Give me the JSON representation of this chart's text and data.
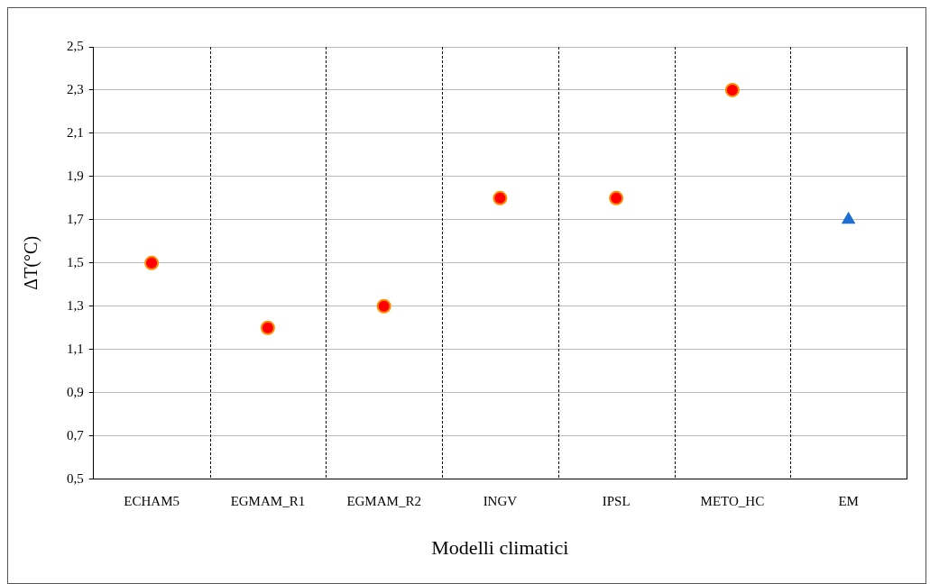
{
  "chart_data": {
    "type": "scatter",
    "xlabel": "Modelli climatici",
    "ylabel": "ΔT(°C)",
    "categories": [
      "ECHAM5",
      "EGMAM_R1",
      "EGMAM_R2",
      "INGV",
      "IPSL",
      "METO_HC",
      "EM"
    ],
    "series": [
      {
        "color": "#ff0000",
        "marker": "circle",
        "values": [
          1.5,
          1.2,
          1.3,
          1.8,
          1.8,
          2.3,
          null
        ]
      },
      {
        "color": "#1f6fd0",
        "marker": "triangle",
        "values": [
          null,
          null,
          null,
          null,
          null,
          null,
          1.7
        ]
      }
    ],
    "ylim": [
      0.5,
      2.5
    ],
    "yticks": [
      {
        "value": 0.5,
        "label": "0,5"
      },
      {
        "value": 0.7,
        "label": "0,7"
      },
      {
        "value": 0.9,
        "label": "0,9"
      },
      {
        "value": 1.1,
        "label": "1,1"
      },
      {
        "value": 1.3,
        "label": "1,3"
      },
      {
        "value": 1.5,
        "label": "1,5"
      },
      {
        "value": 1.7,
        "label": "1,7"
      },
      {
        "value": 1.9,
        "label": "1,9"
      },
      {
        "value": 2.1,
        "label": "2,1"
      },
      {
        "value": 2.3,
        "label": "2,3"
      },
      {
        "value": 2.5,
        "label": "2,5"
      }
    ],
    "grid": true,
    "legend": false
  }
}
